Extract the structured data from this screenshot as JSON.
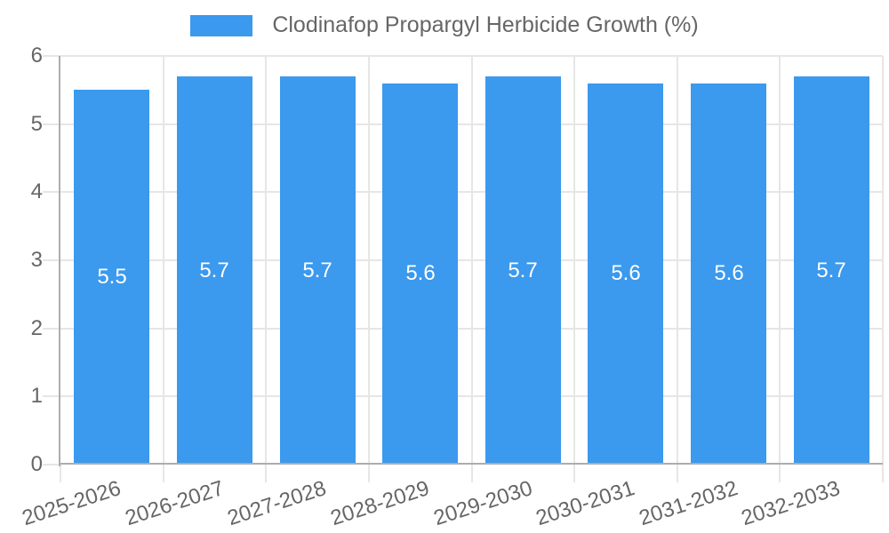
{
  "legend": {
    "label": "Clodinafop Propargyl Herbicide Growth (%)"
  },
  "chart_data": {
    "type": "bar",
    "title": "Clodinafop Propargyl Herbicide Growth (%)",
    "series_name": "Clodinafop Propargyl Herbicide Growth (%)",
    "categories": [
      "2025-2026",
      "2026-2027",
      "2027-2028",
      "2028-2029",
      "2029-2030",
      "2030-2031",
      "2031-2032",
      "2032-2033"
    ],
    "values": [
      5.5,
      5.7,
      5.7,
      5.6,
      5.7,
      5.6,
      5.6,
      5.7
    ],
    "value_labels": [
      "5.5",
      "5.7",
      "5.7",
      "5.6",
      "5.7",
      "5.6",
      "5.6",
      "5.7"
    ],
    "xlabel": "",
    "ylabel": "",
    "ylim": [
      0,
      6
    ],
    "yticks": [
      0,
      1,
      2,
      3,
      4,
      5,
      6
    ],
    "grid": true,
    "legend_position": "top",
    "colors": {
      "bar": "#3B99EE",
      "gridline": "#E6E6E6",
      "axis": "#ADADAD",
      "tick_text": "#666666",
      "value_text": "#FFFFFF",
      "background": "#FFFFFF"
    }
  }
}
